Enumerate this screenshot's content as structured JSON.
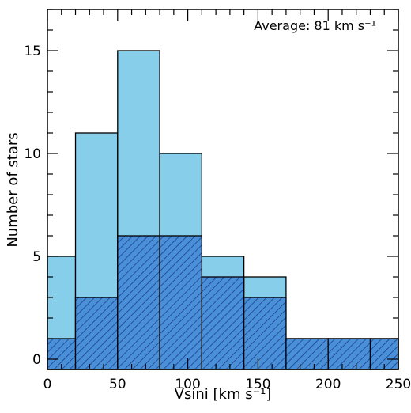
{
  "chart_data": {
    "type": "bar",
    "subtype": "histogram",
    "bin_edges": [
      0,
      20,
      50,
      80,
      110,
      140,
      170,
      200,
      230,
      250
    ],
    "series": [
      {
        "values": [
          5,
          11,
          15,
          10,
          5,
          4,
          1,
          1,
          1
        ],
        "style": "solid"
      },
      {
        "values": [
          1,
          3,
          6,
          6,
          4,
          3,
          1,
          1,
          1
        ],
        "style": "hatched"
      }
    ],
    "xlim": [
      0,
      250
    ],
    "ylim": [
      -0.5,
      17
    ],
    "xticks": [
      "0",
      "50",
      "100",
      "150",
      "200",
      "250"
    ],
    "yticks": [
      "0",
      "5",
      "10",
      "15"
    ],
    "xlabel": "Vsini [km s⁻¹]",
    "ylabel": "Number of stars",
    "annotation": "Average: 81 km s⁻¹",
    "grid": false,
    "colors": {
      "fill": "#87ceeb",
      "hatch_fill": "#4a90d9",
      "edge": "#000000"
    }
  }
}
